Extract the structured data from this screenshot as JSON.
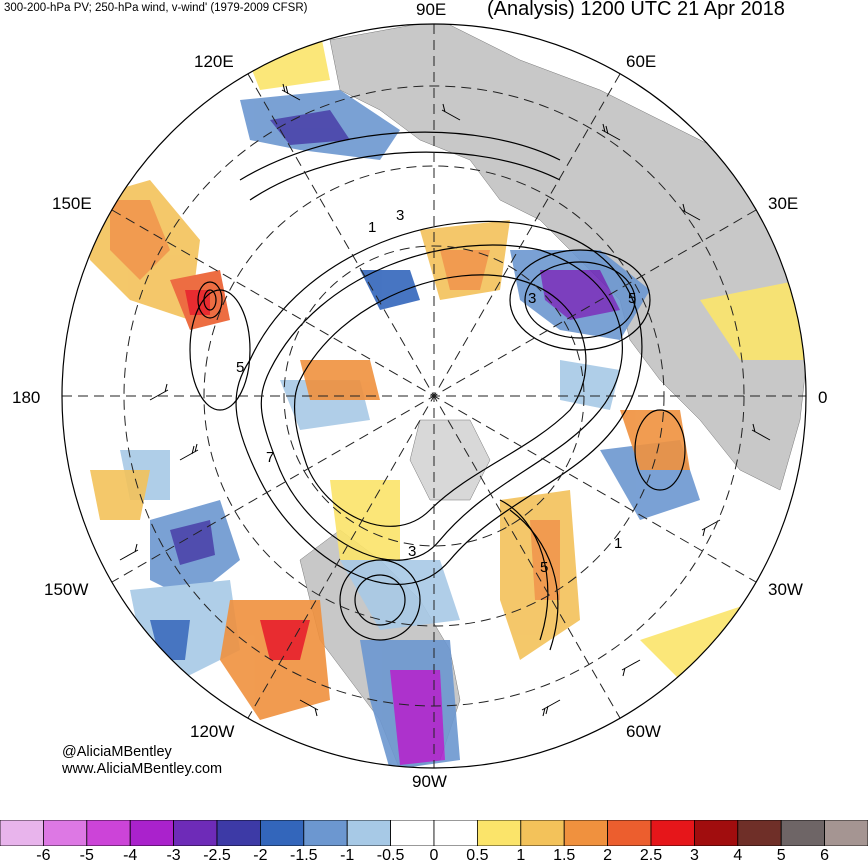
{
  "header": {
    "subtitle": "300-200-hPa PV; 250-hPa wind, v-wind' (1979-2009 CFSR)",
    "title": "(Analysis) 1200 UTC 21 Apr 2018"
  },
  "longitude_labels": [
    "90E",
    "60E",
    "30E",
    "0",
    "30W",
    "60W",
    "90W",
    "120W",
    "150W",
    "180",
    "150E",
    "120E"
  ],
  "contour_labels": [
    "1",
    "3",
    "5",
    "7"
  ],
  "credit": {
    "handle": "@AliciaMBentley",
    "website": "www.AliciaMBentley.com"
  },
  "colorbar": {
    "labels": [
      "-6",
      "-5",
      "-4",
      "-3",
      "-2.5",
      "-2",
      "-1.5",
      "-1",
      "-0.5",
      "0",
      "0.5",
      "1",
      "1.5",
      "2",
      "2.5",
      "3",
      "4",
      "5",
      "6"
    ],
    "colors": [
      "#e8b4ec",
      "#dd78e4",
      "#cc44d8",
      "#aa22cc",
      "#6e2bb8",
      "#3d3aa6",
      "#3366bb",
      "#6c97d0",
      "#a7c9e6",
      "#ffffff",
      "#ffffff",
      "#fbe46a",
      "#f3c25a",
      "#f0913e",
      "#ec5e2e",
      "#e6161a",
      "#a10d0e",
      "#6f2f28",
      "#6e6566",
      "#a59592"
    ]
  },
  "colors": {
    "land": "#c8c8c8",
    "positive_anomaly": "#f3c25a",
    "negative_anomaly": "#6c97d0"
  }
}
